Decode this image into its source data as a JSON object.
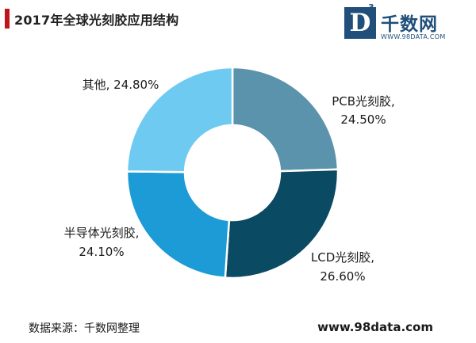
{
  "header": {
    "title": "2017年全球光刻胶应用结构"
  },
  "logo": {
    "mark": "D",
    "superscript": "3",
    "name": "千数网",
    "url": "WWW.98DATA.COM",
    "color": "#1f4f7a"
  },
  "chart_data": {
    "type": "pie",
    "donut": true,
    "title": "2017年全球光刻胶应用结构",
    "slices": [
      {
        "label": "PCB光刻胶,",
        "value_text": "24.50%",
        "value": 24.5,
        "color": "#5b93ad"
      },
      {
        "label": "LCD光刻胶,",
        "value_text": "26.60%",
        "value": 26.6,
        "color": "#0b4a63"
      },
      {
        "label": "半导体光刻胶,",
        "value_text": "24.10%",
        "value": 24.1,
        "color": "#1c9bd6"
      },
      {
        "label": "其他, 24.80%",
        "value_text": "",
        "value": 24.8,
        "color": "#6fcaf1"
      }
    ]
  },
  "footer": {
    "source": "数据来源：千数网整理",
    "site": "www.98data.com"
  }
}
